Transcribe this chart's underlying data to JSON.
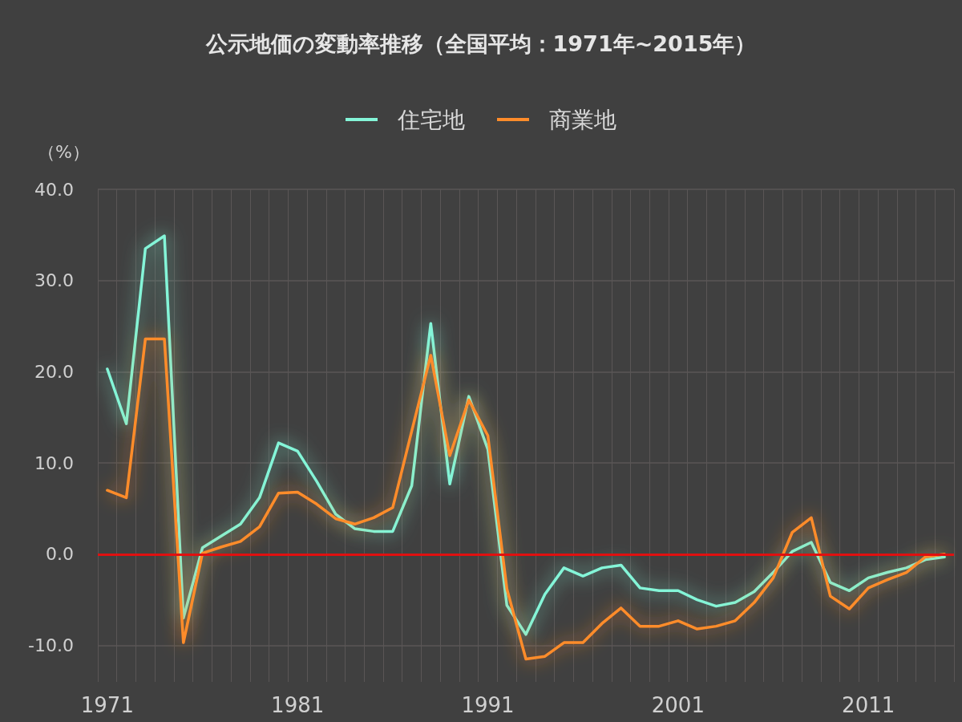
{
  "chart_data": {
    "type": "line",
    "title": "公示地価の変動率推移（全国平均：1971年~2015年）",
    "ylabel": "（%）",
    "categories": [
      "1971",
      null,
      null,
      null,
      null,
      null,
      null,
      null,
      null,
      null,
      "1981",
      null,
      null,
      null,
      null,
      null,
      null,
      null,
      null,
      null,
      "1991",
      null,
      null,
      null,
      null,
      null,
      null,
      null,
      null,
      null,
      "2001",
      null,
      null,
      null,
      null,
      null,
      null,
      null,
      null,
      null,
      "2011",
      null,
      null,
      null,
      null
    ],
    "series": [
      {
        "name": "住宅地",
        "color": "#84f5d8",
        "values": [
          20.3,
          14.3,
          33.5,
          34.9,
          -7.0,
          0.7,
          2.0,
          3.3,
          6.2,
          12.2,
          11.3,
          8.0,
          4.4,
          2.8,
          2.5,
          2.5,
          7.5,
          25.3,
          7.7,
          17.3,
          11.5,
          -5.6,
          -8.8,
          -4.4,
          -1.5,
          -2.4,
          -1.5,
          -1.2,
          -3.7,
          -4.0,
          -4.0,
          -5.0,
          -5.7,
          -5.3,
          -4.1,
          -2.0,
          0.3,
          1.3,
          -3.1,
          -4.0,
          -2.6,
          -2.0,
          -1.5,
          -0.6,
          -0.3
        ]
      },
      {
        "name": "商業地",
        "color": "#ff8c2a",
        "values": [
          7.0,
          6.2,
          23.6,
          23.6,
          -9.7,
          0.1,
          0.8,
          1.4,
          3.0,
          6.7,
          6.8,
          5.5,
          3.9,
          3.3,
          4.0,
          5.1,
          13.5,
          21.8,
          10.8,
          16.9,
          13.0,
          -3.8,
          -11.5,
          -11.2,
          -9.7,
          -9.7,
          -7.6,
          -5.9,
          -7.9,
          -7.9,
          -7.3,
          -8.2,
          -7.9,
          -7.3,
          -5.3,
          -2.6,
          2.4,
          4.0,
          -4.6,
          -6.0,
          -3.7,
          -2.8,
          -2.0,
          -0.3,
          0.0
        ]
      }
    ],
    "ylim": [
      -14,
      40
    ],
    "yticks": [
      {
        "value": -10,
        "label": "-10.0"
      },
      {
        "value": 0,
        "label": "0.0"
      },
      {
        "value": 10,
        "label": "10.0"
      },
      {
        "value": 20,
        "label": "20.0"
      },
      {
        "value": 30,
        "label": "30.0"
      },
      {
        "value": 40,
        "label": "40.0"
      }
    ],
    "ref_lines": [
      {
        "axis": "y",
        "value": 0,
        "color": "#e01010"
      }
    ],
    "grid": true,
    "legend": "top",
    "marker": "none",
    "line_style": "solid"
  }
}
